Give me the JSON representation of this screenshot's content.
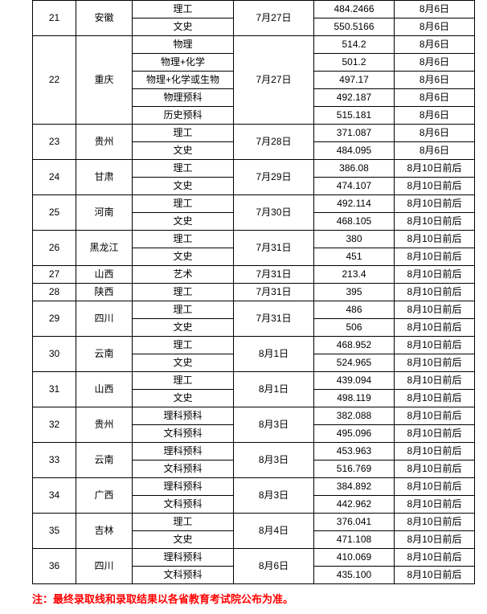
{
  "rows": [
    {
      "idx": "21",
      "province": "安徽",
      "date": "7月27日",
      "types": [
        {
          "type": "理工",
          "score": "484.2466",
          "note": "8月6日"
        },
        {
          "type": "文史",
          "score": "550.5166",
          "note": "8月6日"
        }
      ]
    },
    {
      "idx": "22",
      "province": "重庆",
      "date": "7月27日",
      "types": [
        {
          "type": "物理",
          "score": "514.2",
          "note": "8月6日"
        },
        {
          "type": "物理+化学",
          "score": "501.2",
          "note": "8月6日"
        },
        {
          "type": "物理+化学或生物",
          "score": "497.17",
          "note": "8月6日"
        },
        {
          "type": "物理预科",
          "score": "492.187",
          "note": "8月6日"
        },
        {
          "type": "历史预科",
          "score": "515.181",
          "note": "8月6日"
        }
      ]
    },
    {
      "idx": "23",
      "province": "贵州",
      "date": "7月28日",
      "types": [
        {
          "type": "理工",
          "score": "371.087",
          "note": "8月6日"
        },
        {
          "type": "文史",
          "score": "484.095",
          "note": "8月6日"
        }
      ]
    },
    {
      "idx": "24",
      "province": "甘肃",
      "date": "7月29日",
      "types": [
        {
          "type": "理工",
          "score": "386.08",
          "note": "8月10日前后"
        },
        {
          "type": "文史",
          "score": "474.107",
          "note": "8月10日前后"
        }
      ]
    },
    {
      "idx": "25",
      "province": "河南",
      "date": "7月30日",
      "types": [
        {
          "type": "理工",
          "score": "492.114",
          "note": "8月10日前后"
        },
        {
          "type": "文史",
          "score": "468.105",
          "note": "8月10日前后"
        }
      ]
    },
    {
      "idx": "26",
      "province": "黑龙江",
      "date": "7月31日",
      "types": [
        {
          "type": "理工",
          "score": "380",
          "note": "8月10日前后"
        },
        {
          "type": "文史",
          "score": "451",
          "note": "8月10日前后"
        }
      ]
    },
    {
      "idx": "27",
      "province": "山西",
      "date": "7月31日",
      "types": [
        {
          "type": "艺术",
          "score": "213.4",
          "note": "8月10日前后"
        }
      ]
    },
    {
      "idx": "28",
      "province": "陕西",
      "date": "7月31日",
      "types": [
        {
          "type": "理工",
          "score": "395",
          "note": "8月10日前后"
        }
      ]
    },
    {
      "idx": "29",
      "province": "四川",
      "date": "7月31日",
      "types": [
        {
          "type": "理工",
          "score": "486",
          "note": "8月10日前后"
        },
        {
          "type": "文史",
          "score": "506",
          "note": "8月10日前后"
        }
      ]
    },
    {
      "idx": "30",
      "province": "云南",
      "date": "8月1日",
      "types": [
        {
          "type": "理工",
          "score": "468.952",
          "note": "8月10日前后"
        },
        {
          "type": "文史",
          "score": "524.965",
          "note": "8月10日前后"
        }
      ]
    },
    {
      "idx": "31",
      "province": "山西",
      "date": "8月1日",
      "types": [
        {
          "type": "理工",
          "score": "439.094",
          "note": "8月10日前后"
        },
        {
          "type": "文史",
          "score": "498.119",
          "note": "8月10日前后"
        }
      ]
    },
    {
      "idx": "32",
      "province": "贵州",
      "date": "8月3日",
      "types": [
        {
          "type": "理科预科",
          "score": "382.088",
          "note": "8月10日前后"
        },
        {
          "type": "文科预科",
          "score": "495.096",
          "note": "8月10日前后"
        }
      ]
    },
    {
      "idx": "33",
      "province": "云南",
      "date": "8月3日",
      "types": [
        {
          "type": "理科预科",
          "score": "453.963",
          "note": "8月10日前后"
        },
        {
          "type": "文科预科",
          "score": "516.769",
          "note": "8月10日前后"
        }
      ]
    },
    {
      "idx": "34",
      "province": "广西",
      "date": "8月3日",
      "types": [
        {
          "type": "理科预科",
          "score": "384.892",
          "note": "8月10日前后"
        },
        {
          "type": "文科预科",
          "score": "442.962",
          "note": "8月10日前后"
        }
      ]
    },
    {
      "idx": "35",
      "province": "吉林",
      "date": "8月4日",
      "types": [
        {
          "type": "理工",
          "score": "376.041",
          "note": "8月10日前后"
        },
        {
          "type": "文史",
          "score": "471.108",
          "note": "8月10日前后"
        }
      ]
    },
    {
      "idx": "36",
      "province": "四川",
      "date": "8月6日",
      "types": [
        {
          "type": "理科预科",
          "score": "410.069",
          "note": "8月10日前后"
        },
        {
          "type": "文科预科",
          "score": "435.100",
          "note": "8月10日前后"
        }
      ]
    }
  ],
  "footer": "注：最终录取线和录取结果以各省教育考试院公布为准。",
  "colors": {
    "border": "#000000",
    "text": "#000000",
    "footer": "#ff0000",
    "background": "#ffffff"
  },
  "fontsize": {
    "cell": 12,
    "footer": 13
  }
}
